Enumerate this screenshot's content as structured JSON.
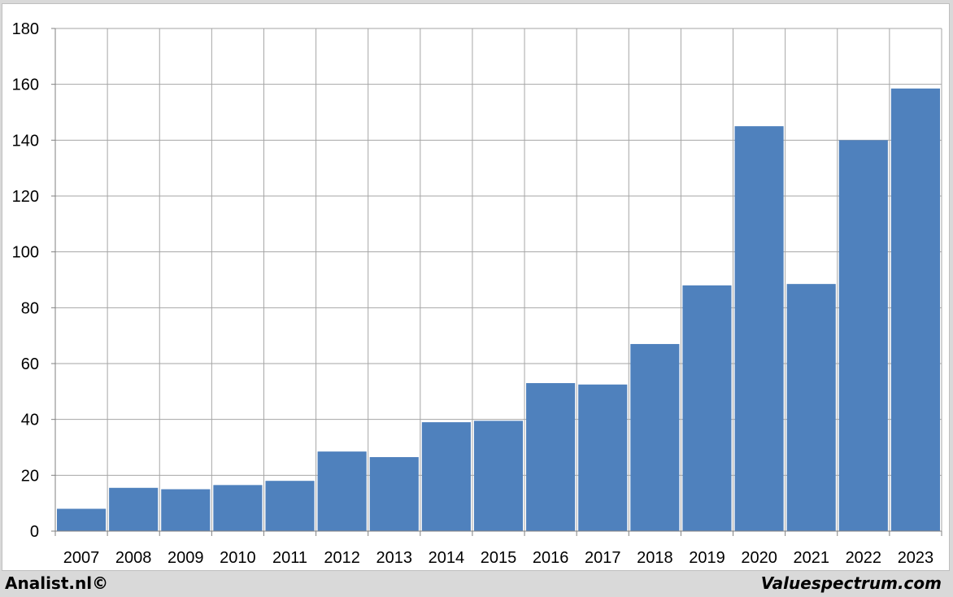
{
  "chart_data": {
    "type": "bar",
    "categories": [
      "2007",
      "2008",
      "2009",
      "2010",
      "2011",
      "2012",
      "2013",
      "2014",
      "2015",
      "2016",
      "2017",
      "2018",
      "2019",
      "2020",
      "2021",
      "2022",
      "2023"
    ],
    "values": [
      8,
      15.5,
      15,
      16.5,
      18,
      28.5,
      26.5,
      39,
      39.5,
      53,
      52.5,
      67,
      88,
      145,
      88.5,
      140,
      158.5
    ],
    "title": "",
    "xlabel": "",
    "ylabel": "",
    "ylim": [
      0,
      180
    ],
    "yticks": [
      0,
      20,
      40,
      60,
      80,
      100,
      120,
      140,
      160,
      180
    ],
    "grid": true,
    "bar_color": "#4f81bd"
  },
  "footer": {
    "left_label": "Analist.nl©",
    "right_label": "Valuespectrum.com"
  }
}
